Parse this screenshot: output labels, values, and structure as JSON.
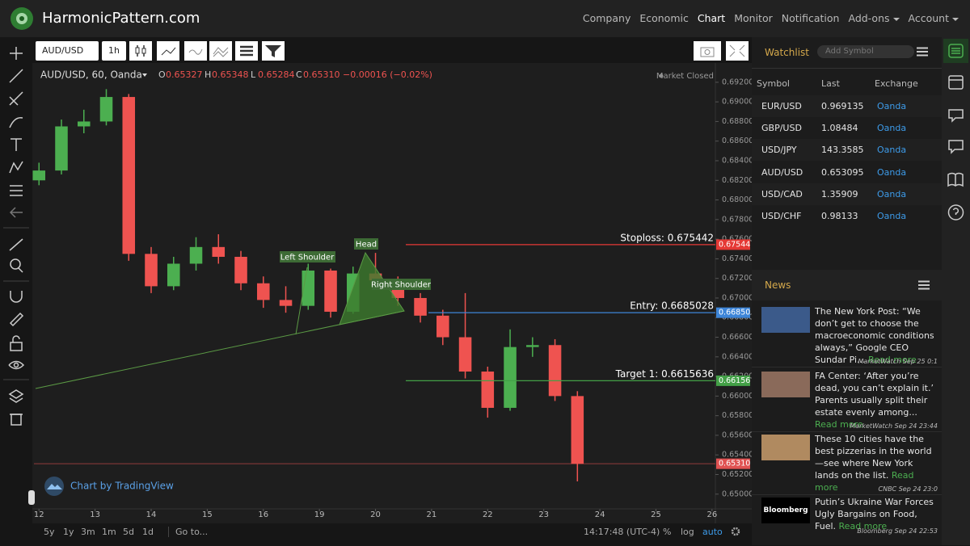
{
  "nav": {
    "brand": "HarmonicPattern.com",
    "items": [
      "Company",
      "Economic",
      "Chart",
      "Monitor",
      "Notification",
      "Add-ons",
      "Account"
    ]
  },
  "toolbar": {
    "symbol": "AUD/USD",
    "interval": "1h"
  },
  "chart_header": {
    "title": "AUD/USD, 60, Oanda",
    "ohlc": [
      {
        "key": "O",
        "value": "0.65327"
      },
      {
        "key": "H",
        "value": "0.65348"
      },
      {
        "key": "L",
        "value": "0.65284"
      },
      {
        "key": "C",
        "value": "0.65310"
      }
    ],
    "change": "−0.00016 (−0.02%)",
    "status": "Market Closed",
    "watermark": "Chart by TradingView"
  },
  "chart_data": {
    "type": "candlestick",
    "x": [
      0,
      0.4,
      0.8,
      1.2,
      1.6,
      2.0,
      2.4,
      2.8,
      3.2,
      3.6,
      4.0,
      4.4,
      4.8,
      5.2,
      5.6,
      6.0,
      6.4,
      6.8,
      7.2,
      7.6,
      8.0,
      8.4,
      8.8,
      9.2,
      9.6
    ],
    "open": [
      0.682,
      0.683,
      0.6875,
      0.688,
      0.6905,
      0.6745,
      0.6712,
      0.6735,
      0.6752,
      0.6742,
      0.6715,
      0.6698,
      0.6692,
      0.6728,
      0.6686,
      0.6725,
      0.6718,
      0.67,
      0.6682,
      0.666,
      0.6625,
      0.6588,
      0.665,
      0.6652,
      0.66
    ],
    "high": [
      0.6838,
      0.6882,
      0.6892,
      0.6913,
      0.6908,
      0.6752,
      0.6742,
      0.6762,
      0.6765,
      0.6748,
      0.6722,
      0.6712,
      0.6735,
      0.673,
      0.6732,
      0.6746,
      0.6722,
      0.6705,
      0.6688,
      0.6705,
      0.663,
      0.6668,
      0.666,
      0.6658,
      0.6605
    ],
    "low": [
      0.6815,
      0.6826,
      0.6868,
      0.6876,
      0.6738,
      0.6705,
      0.6708,
      0.6728,
      0.6735,
      0.6708,
      0.669,
      0.6685,
      0.6688,
      0.668,
      0.6684,
      0.6712,
      0.6692,
      0.6675,
      0.6652,
      0.6618,
      0.6578,
      0.6585,
      0.664,
      0.6595,
      0.6513
    ],
    "close": [
      0.683,
      0.6875,
      0.688,
      0.6905,
      0.6745,
      0.6712,
      0.6735,
      0.6752,
      0.6742,
      0.6715,
      0.6698,
      0.6692,
      0.6728,
      0.6686,
      0.6725,
      0.6718,
      0.67,
      0.6682,
      0.666,
      0.6625,
      0.6588,
      0.665,
      0.6652,
      0.66,
      0.6531
    ],
    "up_color": "#4caf50",
    "down_color": "#ef5350",
    "xlim": [
      -0.09,
      12.06
    ],
    "xticks": [
      {
        "value": 0,
        "label": "12"
      },
      {
        "value": 1,
        "label": "13"
      },
      {
        "value": 2,
        "label": "14"
      },
      {
        "value": 3,
        "label": "15"
      },
      {
        "value": 4,
        "label": "16"
      },
      {
        "value": 5,
        "label": "19"
      },
      {
        "value": 6,
        "label": "20"
      },
      {
        "value": 7,
        "label": "21"
      },
      {
        "value": 8,
        "label": "22"
      },
      {
        "value": 9,
        "label": "23"
      },
      {
        "value": 10,
        "label": "24"
      },
      {
        "value": 11,
        "label": "25"
      },
      {
        "value": 12,
        "label": "26"
      }
    ],
    "ylim": [
      0.6485,
      0.6938
    ],
    "yticks": [
      {
        "value": 0.65,
        "label": "0.65000"
      },
      {
        "value": 0.652,
        "label": "0.65200"
      },
      {
        "value": 0.654,
        "label": "0.65400"
      },
      {
        "value": 0.656,
        "label": "0.65600"
      },
      {
        "value": 0.658,
        "label": "0.65800"
      },
      {
        "value": 0.66,
        "label": "0.66000"
      },
      {
        "value": 0.662,
        "label": "0.66200"
      },
      {
        "value": 0.664,
        "label": "0.66400"
      },
      {
        "value": 0.666,
        "label": "0.66600"
      },
      {
        "value": 0.668,
        "label": "0.66800"
      },
      {
        "value": 0.67,
        "label": "0.67000"
      },
      {
        "value": 0.672,
        "label": "0.67200"
      },
      {
        "value": 0.674,
        "label": "0.67400"
      },
      {
        "value": 0.676,
        "label": "0.67600"
      },
      {
        "value": 0.678,
        "label": "0.67800"
      },
      {
        "value": 0.68,
        "label": "0.68000"
      },
      {
        "value": 0.682,
        "label": "0.68200"
      },
      {
        "value": 0.684,
        "label": "0.68400"
      },
      {
        "value": 0.686,
        "label": "0.68600"
      },
      {
        "value": 0.688,
        "label": "0.68800"
      },
      {
        "value": 0.69,
        "label": "0.69000"
      },
      {
        "value": 0.692,
        "label": "0.69200"
      }
    ],
    "grid": false,
    "levels": [
      {
        "label": "Stoploss: 0.675442",
        "value": 0.675442,
        "tag": "0.67544",
        "color": "#e53935"
      },
      {
        "label": "Entry: 0.6685028",
        "value": 0.6685028,
        "tag": "0.66850",
        "color": "#3d85d8"
      },
      {
        "label": "Target 1: 0.6615636",
        "value": 0.6615636,
        "tag": "0.66156",
        "color": "#43a047"
      }
    ],
    "last_price": {
      "value": 0.6531,
      "tag": "0.65310",
      "color": "#e05252"
    },
    "annotations": [
      "Left Shoulder",
      "Head",
      "Right Shoulder"
    ]
  },
  "bottom_bar": {
    "ranges": [
      "5y",
      "1y",
      "3m",
      "1m",
      "5d",
      "1d"
    ],
    "goto": "Go to...",
    "time": "14:17:48 (UTC-4)",
    "options": [
      "%",
      "log",
      "auto"
    ]
  },
  "watchlist": {
    "title": "Watchlist",
    "placeholder": "Add Symbol",
    "columns": [
      "Symbol",
      "Last",
      "Exchange"
    ],
    "rows": [
      [
        "EUR/USD",
        "0.969135",
        "Oanda"
      ],
      [
        "GBP/USD",
        "1.08484",
        "Oanda"
      ],
      [
        "USD/JPY",
        "143.3585",
        "Oanda"
      ],
      [
        "AUD/USD",
        "0.653095",
        "Oanda"
      ],
      [
        "USD/CAD",
        "1.35909",
        "Oanda"
      ],
      [
        "USD/CHF",
        "0.98133",
        "Oanda"
      ]
    ]
  },
  "news": {
    "title": "News",
    "items": [
      {
        "text": "The New York Post: “We don’t get to choose the macroeconomic conditions always,” Google CEO Sundar Pi...",
        "more": "Read more",
        "source": "MarketWatch Sep 25 0:1"
      },
      {
        "text": "FA Center: ‘After you’re dead, you can’t explain it.’ Parents usually split their estate evenly among...",
        "more": "Read more",
        "source": "MarketWatch Sep 24 23:44"
      },
      {
        "text": "These 10 cities have the best pizzerias in the world—see where New York lands on the list.",
        "more": "Read more",
        "source": "CNBC Sep 24 23:0"
      },
      {
        "text": "Putin’s Ukraine War Forces Ugly Bargains on Food, Fuel.",
        "more": "Read more",
        "source": "Bloomberg Sep 24 22:53",
        "thumb": "Bloomberg"
      }
    ]
  }
}
